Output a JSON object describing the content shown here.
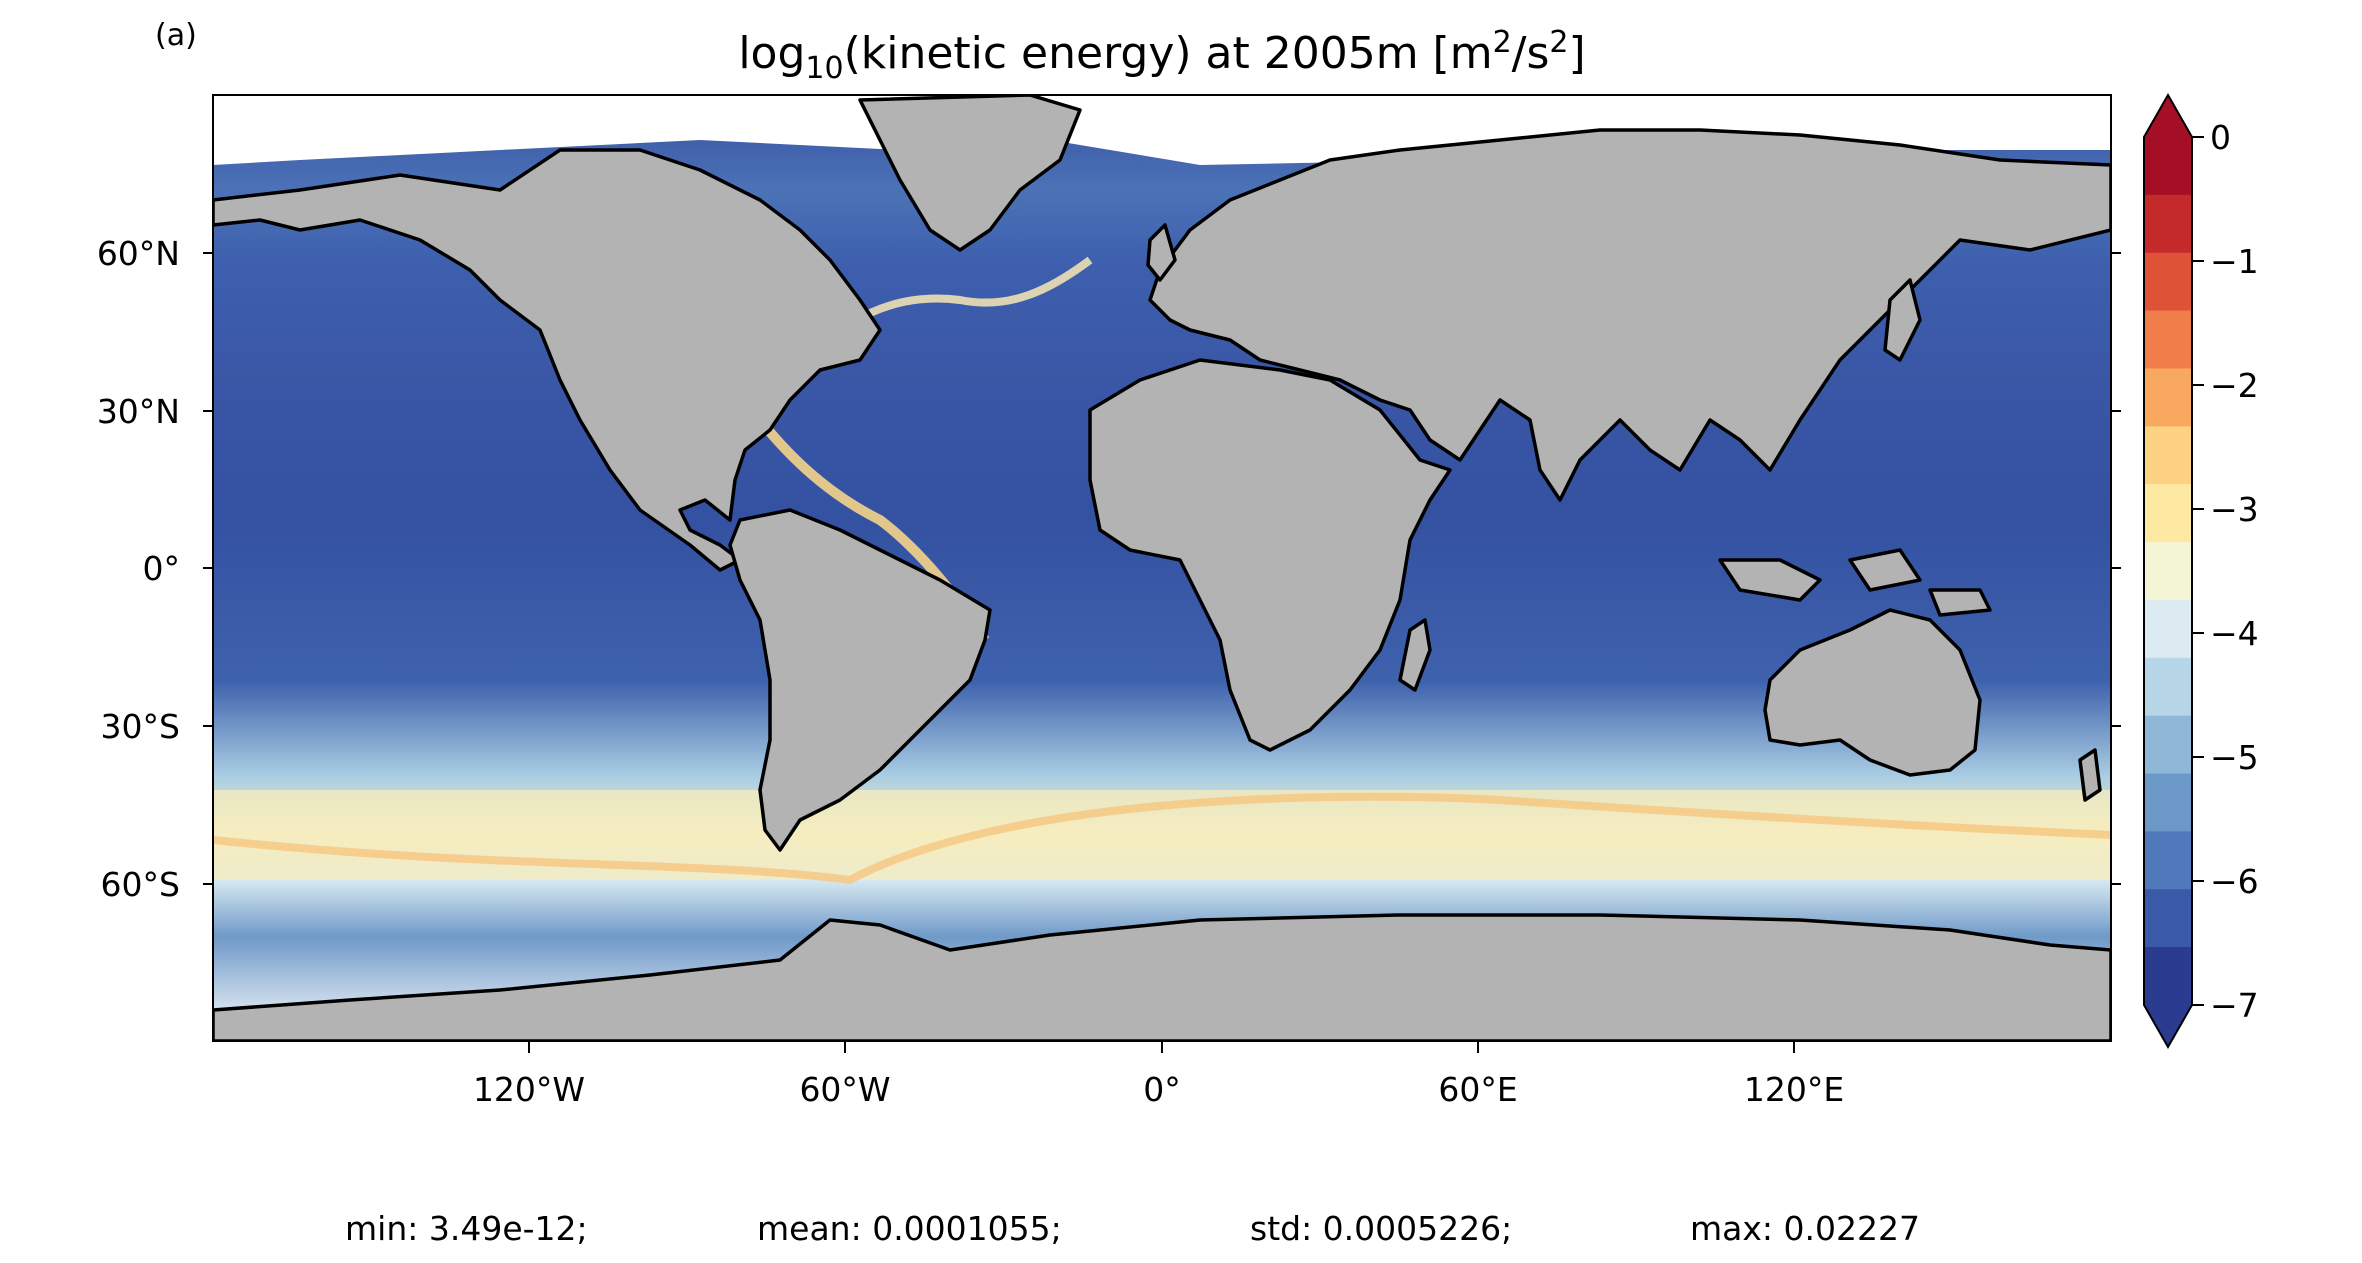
{
  "panel_label": "(a)",
  "title": {
    "main": "log",
    "sub": "10",
    "rest": "(kinetic energy) at 2005m [m",
    "sup1": "2",
    "mid": "/s",
    "sup2": "2",
    "end": "]"
  },
  "lat_ticks": [
    "60°N",
    "30°N",
    "0°",
    "30°S",
    "60°S"
  ],
  "lon_ticks": [
    "120°W",
    "60°W",
    "0°",
    "60°E",
    "120°E"
  ],
  "colorbar": {
    "ticks": [
      "0",
      "−1",
      "−2",
      "−3",
      "−4",
      "−5",
      "−6",
      "−7"
    ],
    "min": -7,
    "max": 0,
    "levels": [
      "#2b3b8f",
      "#3a59a8",
      "#4f79bb",
      "#6c98c8",
      "#8fb8d8",
      "#b6d6e7",
      "#dcebf2",
      "#f3f6d4",
      "#fee9a3",
      "#fdd283",
      "#f9a85f",
      "#f07e4a",
      "#de5337",
      "#c52a2a",
      "#a50f26"
    ]
  },
  "stats": {
    "min": "min: 3.49e-12;",
    "mean": "mean: 0.0001055;",
    "std": "std: 0.0005226;",
    "max": "max: 0.02227"
  }
}
